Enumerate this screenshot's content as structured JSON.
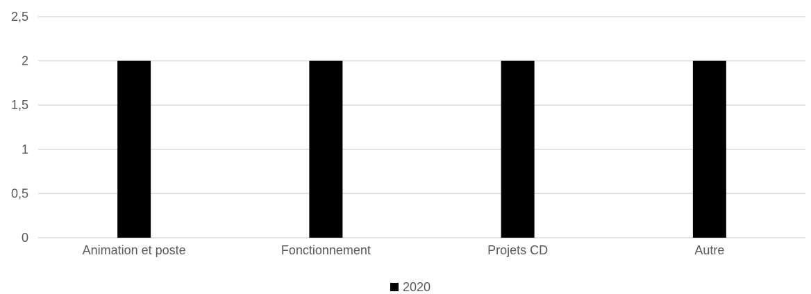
{
  "chart_data": {
    "type": "bar",
    "categories": [
      "Animation et poste",
      "Fonctionnement",
      "Projets CD",
      "Autre"
    ],
    "series": [
      {
        "name": "2020",
        "values": [
          2,
          2,
          2,
          2
        ],
        "color": "#000000"
      }
    ],
    "y_ticks": [
      "0",
      "0,5",
      "1",
      "1,5",
      "2",
      "2,5"
    ],
    "ylim": [
      0,
      2.5
    ],
    "grid": true,
    "legend": "bottom",
    "title": "",
    "xlabel": "",
    "ylabel": ""
  },
  "colors": {
    "gridline": "#d9d9d9",
    "text": "#595959"
  }
}
